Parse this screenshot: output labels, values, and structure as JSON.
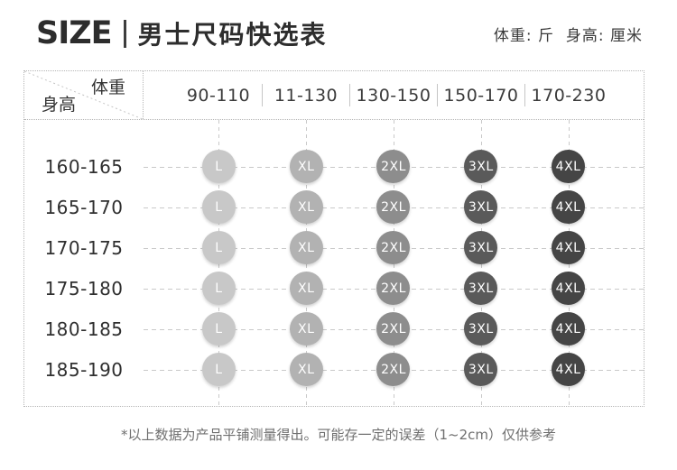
{
  "header": {
    "title_en": "SIZE",
    "title_cn": "男士尺码快选表",
    "units_note": "体重: 斤  身高: 厘米"
  },
  "table": {
    "corner": {
      "weight_label": "体重",
      "height_label": "身高"
    },
    "weight_columns": [
      "90-110",
      "11-130",
      "130-150",
      "150-170",
      "170-230"
    ],
    "rows": [
      {
        "height": "160-165",
        "sizes": [
          "L",
          "XL",
          "2XL",
          "3XL",
          "4XL"
        ]
      },
      {
        "height": "165-170",
        "sizes": [
          "L",
          "XL",
          "2XL",
          "3XL",
          "4XL"
        ]
      },
      {
        "height": "170-175",
        "sizes": [
          "L",
          "XL",
          "2XL",
          "3XL",
          "4XL"
        ]
      },
      {
        "height": "175-180",
        "sizes": [
          "L",
          "XL",
          "2XL",
          "3XL",
          "4XL"
        ]
      },
      {
        "height": "180-185",
        "sizes": [
          "L",
          "XL",
          "2XL",
          "3XL",
          "4XL"
        ]
      },
      {
        "height": "185-190",
        "sizes": [
          "L",
          "XL",
          "2XL",
          "3XL",
          "4XL"
        ]
      }
    ],
    "size_colors": {
      "L": "#c8c8c8",
      "XL": "#b2b2b2",
      "2XL": "#8d8d8d",
      "3XL": "#5a5a5a",
      "4XL": "#454545"
    }
  },
  "footnote": "*以上数据为产品平铺测量得出。可能存一定的误差（1~2cm）仅供参考",
  "chart_data": {
    "type": "table",
    "title": "男士尺码快选表",
    "units": {
      "weight": "斤",
      "height": "厘米"
    },
    "column_axis_label": "体重",
    "row_axis_label": "身高",
    "columns_weight": [
      "90-110",
      "11-130",
      "130-150",
      "150-170",
      "170-230"
    ],
    "rows_height": [
      "160-165",
      "165-170",
      "170-175",
      "175-180",
      "180-185",
      "185-190"
    ],
    "cell_values": [
      [
        "L",
        "XL",
        "2XL",
        "3XL",
        "4XL"
      ],
      [
        "L",
        "XL",
        "2XL",
        "3XL",
        "4XL"
      ],
      [
        "L",
        "XL",
        "2XL",
        "3XL",
        "4XL"
      ],
      [
        "L",
        "XL",
        "2XL",
        "3XL",
        "4XL"
      ],
      [
        "L",
        "XL",
        "2XL",
        "3XL",
        "4XL"
      ],
      [
        "L",
        "XL",
        "2XL",
        "3XL",
        "4XL"
      ]
    ],
    "footnote": "*以上数据为产品平铺测量得出。可能存一定的误差（1~2cm）仅供参考"
  }
}
